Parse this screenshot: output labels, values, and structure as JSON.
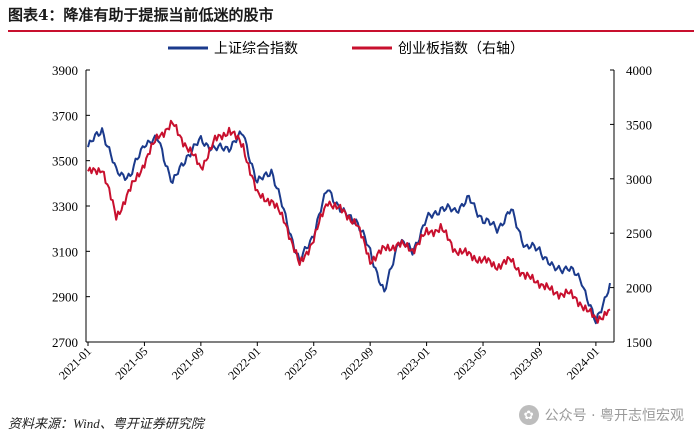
{
  "figure": {
    "title": "图表4：降准有助于提振当前低迷的股市",
    "source": "资料来源：Wind、粤开证券研究院",
    "watermark": "公众号 · 粤开志恒宏观",
    "colors": {
      "title_rule": "#c8102e",
      "series_sh": "#1b3a8c",
      "series_cy": "#c8102e"
    }
  },
  "chart_data": {
    "type": "line",
    "title": "",
    "x_tick_labels": [
      "2021-01",
      "2021-05",
      "2021-09",
      "2022-01",
      "2022-05",
      "2022-09",
      "2023-01",
      "2023-05",
      "2023-09",
      "2024-01"
    ],
    "x": [
      "2021-01",
      "2021-02",
      "2021-03",
      "2021-04",
      "2021-05",
      "2021-06",
      "2021-07",
      "2021-08",
      "2021-09",
      "2021-10",
      "2021-11",
      "2021-12",
      "2022-01",
      "2022-02",
      "2022-03",
      "2022-04",
      "2022-05",
      "2022-06",
      "2022-07",
      "2022-08",
      "2022-09",
      "2022-10",
      "2022-11",
      "2022-12",
      "2023-01",
      "2023-02",
      "2023-03",
      "2023-04",
      "2023-05",
      "2023-06",
      "2023-07",
      "2023-08",
      "2023-09",
      "2023-10",
      "2023-11",
      "2023-12",
      "2024-01",
      "2024-02"
    ],
    "y_left": {
      "label": "",
      "ylim": [
        2700,
        3900
      ],
      "ticks": [
        2700,
        2900,
        3100,
        3300,
        3500,
        3700,
        3900
      ]
    },
    "y_right": {
      "label": "",
      "ylim": [
        1500,
        4000
      ],
      "ticks": [
        1500,
        2000,
        2500,
        3000,
        3500,
        4000
      ]
    },
    "legend_position": "top",
    "series": [
      {
        "name": "上证综合指数",
        "axis": "left",
        "color": "#1b3a8c",
        "values": [
          3560,
          3640,
          3450,
          3430,
          3580,
          3590,
          3400,
          3520,
          3590,
          3550,
          3560,
          3620,
          3400,
          3460,
          3250,
          3050,
          3180,
          3380,
          3270,
          3240,
          3100,
          2910,
          3150,
          3100,
          3240,
          3290,
          3280,
          3330,
          3240,
          3200,
          3280,
          3120,
          3110,
          3020,
          3030,
          2970,
          2780,
          2960
        ]
      },
      {
        "name": "创业板指数（右轴）",
        "axis": "right",
        "color": "#c8102e",
        "values": [
          3050,
          3100,
          2650,
          2900,
          3150,
          3400,
          3500,
          3300,
          3100,
          3350,
          3450,
          3300,
          2850,
          2800,
          2600,
          2200,
          2450,
          2800,
          2700,
          2600,
          2250,
          2350,
          2400,
          2350,
          2500,
          2550,
          2350,
          2300,
          2250,
          2200,
          2250,
          2100,
          2050,
          1950,
          1950,
          1850,
          1700,
          1800
        ]
      }
    ]
  }
}
